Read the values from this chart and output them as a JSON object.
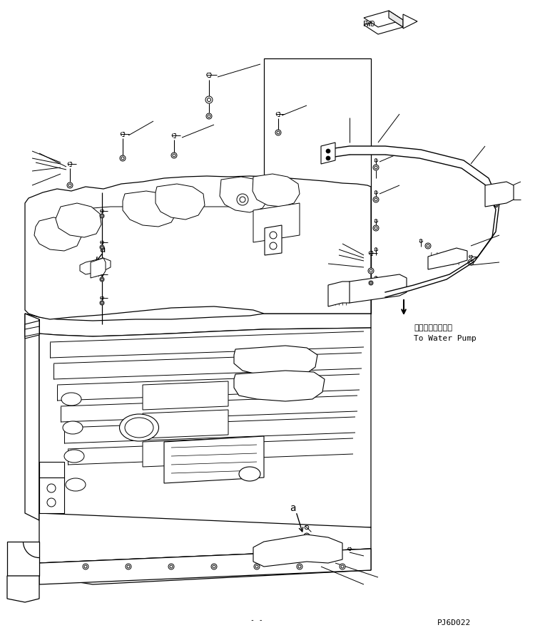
{
  "background_color": "#ffffff",
  "page_code": "PJ6D022",
  "fwd_label": "FWD",
  "water_pump_jp": "ウォータポンプへ",
  "water_pump_en": "To Water Pump",
  "label_a": "a",
  "line_color": "#000000",
  "fig_note": "- -"
}
